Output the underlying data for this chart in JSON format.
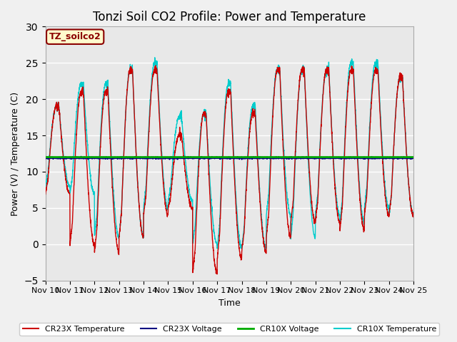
{
  "title": "Tonzi Soil CO2 Profile: Power and Temperature",
  "xlabel": "Time",
  "ylabel": "Power (V) / Temperature (C)",
  "ylim": [
    -5,
    30
  ],
  "xlim": [
    0,
    15
  ],
  "x_tick_labels": [
    "Nov 10",
    "Nov 11",
    "Nov 12",
    "Nov 13",
    "Nov 14",
    "Nov 15",
    "Nov 16",
    "Nov 17",
    "Nov 18",
    "Nov 19",
    "Nov 20",
    "Nov 21",
    "Nov 22",
    "Nov 23",
    "Nov 24",
    "Nov 25"
  ],
  "cr10x_voltage_level": 12.0,
  "cr23x_voltage_level": 11.9,
  "fig_bg_color": "#f0f0f0",
  "plot_bg_color": "#e8e8e8",
  "title_fontsize": 12,
  "annotation_text": "TZ_soilco2",
  "annotation_color": "#8B0000",
  "annotation_bg": "#FFFACD",
  "legend_entries": [
    "CR23X Temperature",
    "CR23X Voltage",
    "CR10X Voltage",
    "CR10X Temperature"
  ],
  "legend_colors": [
    "#cc0000",
    "#000080",
    "#00aa00",
    "#00cccc"
  ],
  "day_peaks_cyan": [
    19,
    22,
    22,
    24,
    25,
    17.5,
    18,
    22,
    19,
    24,
    24,
    24,
    25,
    25,
    23
  ],
  "day_mins_cyan": [
    8,
    7,
    1,
    1,
    5,
    6,
    0,
    -0.5,
    -0.5,
    4,
    1,
    4,
    3,
    5,
    4
  ],
  "day_peaks_red": [
    19,
    21,
    21,
    24,
    24,
    15,
    18,
    21,
    18,
    24,
    24,
    24,
    24,
    24,
    23
  ],
  "day_mins_red": [
    7,
    0,
    -1,
    1,
    4,
    5,
    -4,
    -2,
    -1,
    1,
    3,
    3,
    2,
    4,
    4
  ],
  "noise_scale": 0.3,
  "pts_per_day": 200,
  "n_days": 15
}
